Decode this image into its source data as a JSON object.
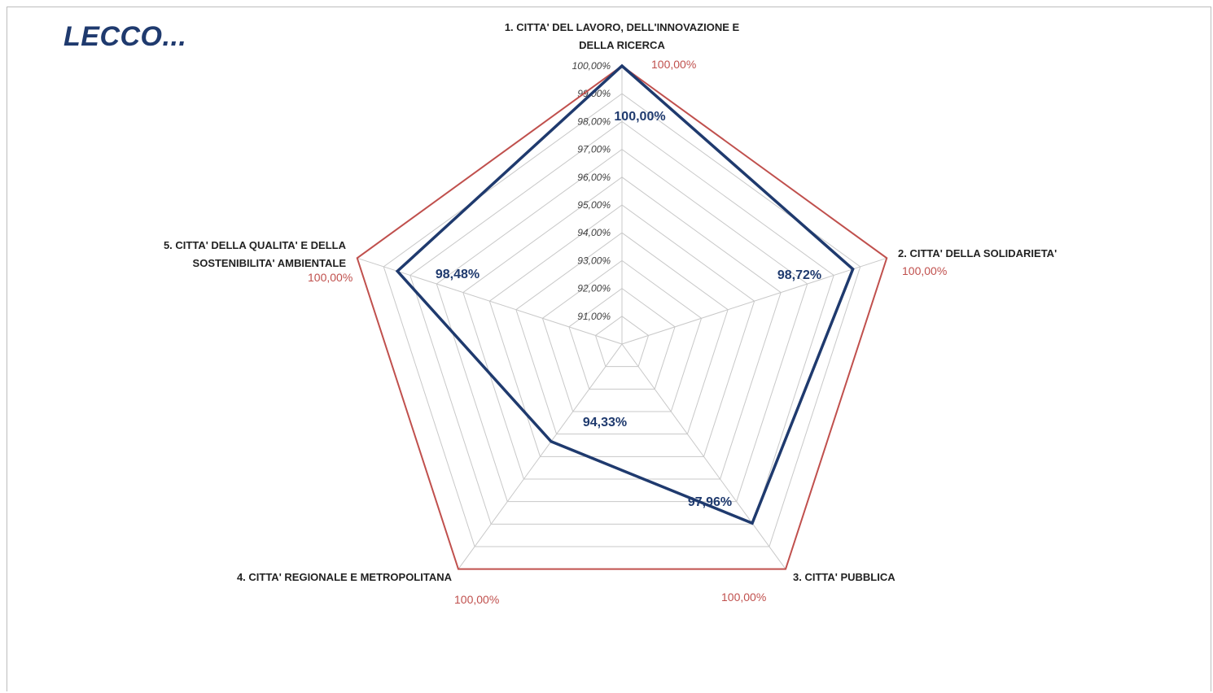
{
  "page": {
    "title": "LECCO..."
  },
  "colors": {
    "reference_series": "#c0504d",
    "value_series": "#1f3a6e",
    "grid": "#c8c8c8"
  },
  "chart_data": {
    "type": "radar",
    "axes": [
      [
        "1. CITTA' DEL LAVORO, DELL'INNOVAZIONE E",
        "DELLA RICERCA"
      ],
      [
        "2. CITTA' DELLA SOLIDARIETA'"
      ],
      [
        "3. CITTA' PUBBLICA"
      ],
      [
        "4. CITTA' REGIONALE E METROPOLITANA"
      ],
      [
        "5. CITTA' DELLA QUALITA' E DELLA",
        "SOSTENIBILITA' AMBIENTALE"
      ]
    ],
    "rlim": [
      90,
      100
    ],
    "ticks": [
      "91,00%",
      "92,00%",
      "93,00%",
      "94,00%",
      "95,00%",
      "96,00%",
      "97,00%",
      "98,00%",
      "99,00%",
      "100,00%"
    ],
    "tick_values": [
      91,
      92,
      93,
      94,
      95,
      96,
      97,
      98,
      99,
      100
    ],
    "series": [
      {
        "values": [
          100,
          100,
          100,
          100,
          100
        ],
        "labels": [
          "100,00%",
          "100,00%",
          "100,00%",
          "100,00%",
          "100,00%"
        ]
      },
      {
        "values": [
          100,
          98.72,
          97.96,
          94.33,
          98.48
        ],
        "labels": [
          "100,00%",
          "98,72%",
          "97,96%",
          "94,33%",
          "98,48%"
        ]
      }
    ],
    "grid": true
  }
}
